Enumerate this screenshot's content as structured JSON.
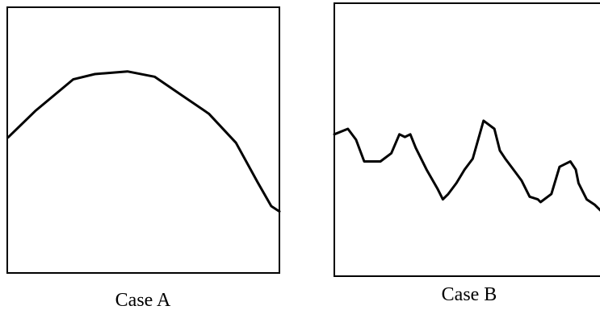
{
  "chart_data": [
    {
      "type": "line",
      "caption": "Case A",
      "grid": false,
      "xlim": [
        0,
        100
      ],
      "ylim": [
        0,
        100
      ],
      "series": [
        {
          "x": [
            0,
            10,
            24,
            32,
            44,
            54,
            64,
            74,
            84,
            92,
            97,
            100
          ],
          "y": [
            51,
            61,
            73,
            75,
            76,
            74,
            67,
            60,
            49,
            34,
            25,
            23
          ]
        }
      ]
    },
    {
      "type": "line",
      "caption": "Case B",
      "grid": false,
      "xlim": [
        0,
        100
      ],
      "ylim": [
        0,
        100
      ],
      "series": [
        {
          "x": [
            0,
            5,
            8,
            11,
            17,
            21,
            24,
            26,
            28,
            30,
            32,
            34,
            38,
            40,
            42,
            45,
            48,
            51,
            55,
            59,
            61,
            63,
            66,
            69,
            72,
            75,
            76,
            80,
            83,
            85,
            87,
            89,
            90,
            93,
            96,
            98,
            100
          ],
          "y": [
            52,
            54,
            50,
            42,
            42,
            45,
            52,
            51,
            52,
            47,
            43,
            39,
            32,
            28,
            30,
            34,
            39,
            43,
            57,
            54,
            46,
            43,
            39,
            35,
            29,
            28,
            27,
            30,
            40,
            41,
            42,
            39,
            34,
            28,
            26,
            24,
            23
          ]
        }
      ]
    }
  ]
}
